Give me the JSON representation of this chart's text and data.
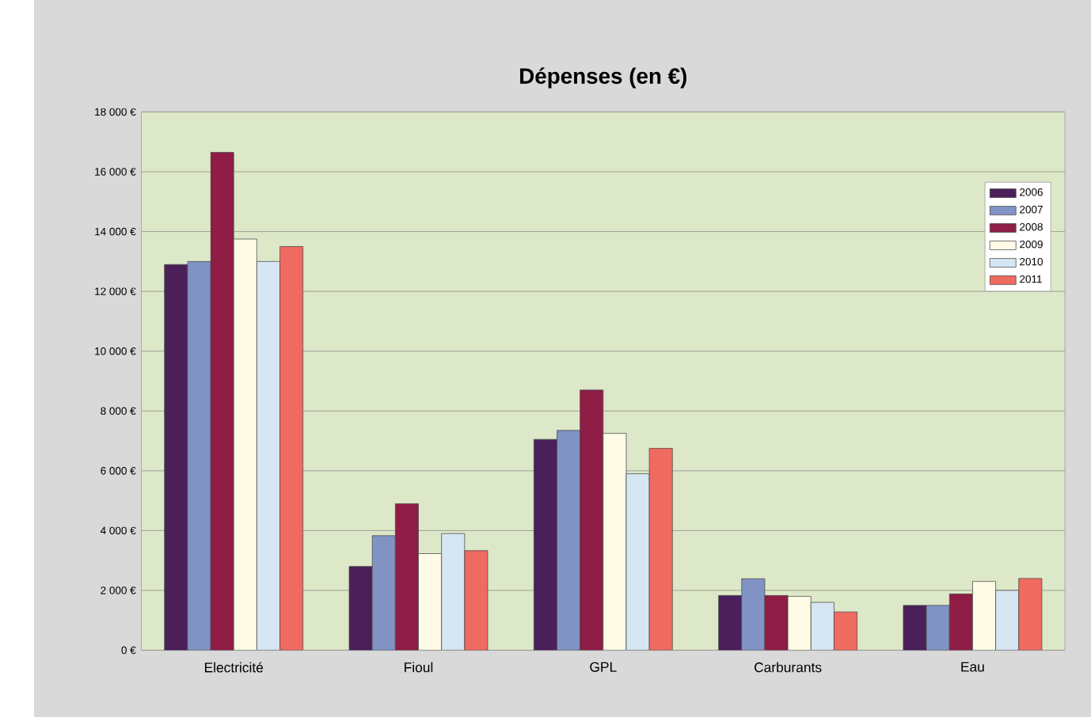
{
  "chart_data": {
    "type": "bar",
    "title": "Dépenses (en €)",
    "categories": [
      "Electricité",
      "Fioul",
      "GPL",
      "Carburants",
      "Eau"
    ],
    "series": [
      {
        "name": "2006",
        "color": "#4b1f5a",
        "values": [
          12900,
          2800,
          7050,
          1830,
          1500
        ]
      },
      {
        "name": "2007",
        "color": "#8093c4",
        "values": [
          13000,
          3830,
          7350,
          2390,
          1500
        ]
      },
      {
        "name": "2008",
        "color": "#8f1d45",
        "values": [
          16650,
          4900,
          8700,
          1830,
          1880
        ]
      },
      {
        "name": "2009",
        "color": "#fffbe6",
        "values": [
          13750,
          3230,
          7250,
          1800,
          2300
        ]
      },
      {
        "name": "2010",
        "color": "#d6e6f2",
        "values": [
          13000,
          3900,
          5900,
          1600,
          2000
        ]
      },
      {
        "name": "2011",
        "color": "#ef6a60",
        "values": [
          13500,
          3330,
          6750,
          1280,
          2400
        ]
      }
    ],
    "ylim": [
      0,
      18000
    ],
    "yticks": [
      {
        "value": 0,
        "label": "0 €"
      },
      {
        "value": 2000,
        "label": "2 000 €"
      },
      {
        "value": 4000,
        "label": "4 000 €"
      },
      {
        "value": 6000,
        "label": "6 000 €"
      },
      {
        "value": 8000,
        "label": "8 000 €"
      },
      {
        "value": 10000,
        "label": "10 000 €"
      },
      {
        "value": 12000,
        "label": "12 000 €"
      },
      {
        "value": 14000,
        "label": "14 000 €"
      },
      {
        "value": 16000,
        "label": "16 000 €"
      },
      {
        "value": 18000,
        "label": "18 000 €"
      }
    ],
    "grid": "y",
    "legend": "top right"
  }
}
